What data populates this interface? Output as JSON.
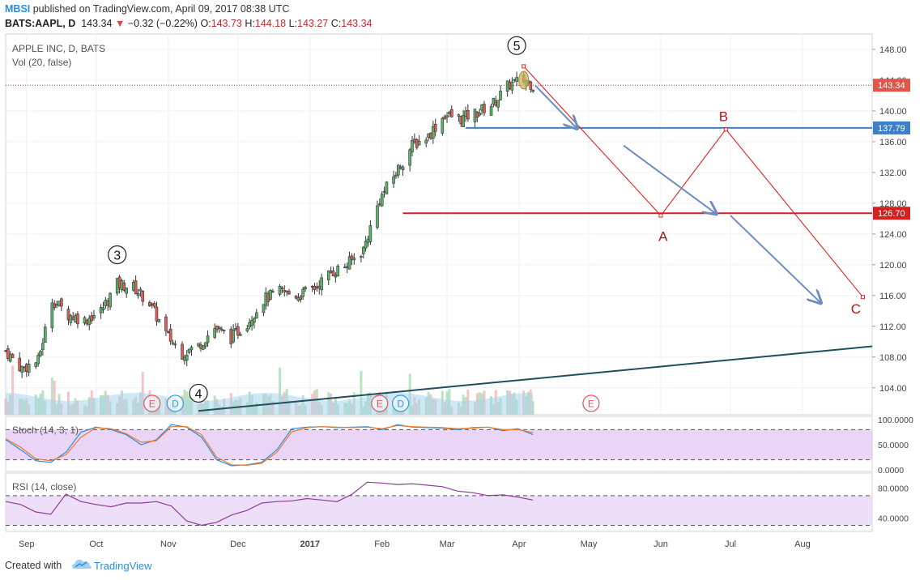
{
  "header": {
    "user": "MBSI",
    "published": "published on TradingView.com, April 09, 2017 08:38 UTC",
    "symbol": "BATS:AAPL, D",
    "last": "143.34",
    "change": "−0.32 (−0.22%)",
    "o_label": "O:",
    "o": "143.73",
    "h_label": "H:",
    "h": "144.18",
    "l_label": "L:",
    "l": "143.27",
    "c_label": "C:",
    "c": "143.34"
  },
  "footer": {
    "created": "Created with",
    "brand": "TradingView"
  },
  "chart_data": [
    {
      "type": "candlestick",
      "title": "APPLE INC, D, BATS",
      "volume_label": "Vol (20, false)",
      "ylim": [
        100.5,
        150
      ],
      "y_ticks": [
        "148.00",
        "144.00",
        "140.00",
        "136.00",
        "132.00",
        "128.00",
        "124.00",
        "120.00",
        "116.00",
        "112.00",
        "108.00",
        "104.00"
      ],
      "x_labels": [
        "Sep",
        "Oct",
        "Nov",
        "Dec",
        "2017",
        "Feb",
        "Mar",
        "Apr",
        "May",
        "Jun",
        "Jul",
        "Aug"
      ],
      "price_badges": [
        {
          "value": "143.34",
          "color": "#e0564b"
        },
        {
          "value": "137.79",
          "color": "#3f7fc8"
        },
        {
          "value": "126.70",
          "color": "#d32020"
        }
      ],
      "levels": [
        137.79,
        126.7
      ],
      "close_path": [
        [
          "2016-08-23",
          108.8
        ],
        [
          "2016-08-30",
          106.5
        ],
        [
          "2016-09-06",
          107.5
        ],
        [
          "2016-09-12",
          115.5
        ],
        [
          "2016-09-19",
          113.5
        ],
        [
          "2016-09-26",
          112.8
        ],
        [
          "2016-10-03",
          114.0
        ],
        [
          "2016-10-10",
          117.5
        ],
        [
          "2016-10-17",
          117.1
        ],
        [
          "2016-10-24",
          115.0
        ],
        [
          "2016-10-31",
          111.0
        ],
        [
          "2016-11-07",
          108.5
        ],
        [
          "2016-11-14",
          109.5
        ],
        [
          "2016-11-21",
          111.8
        ],
        [
          "2016-11-28",
          110.5
        ],
        [
          "2016-12-05",
          112.5
        ],
        [
          "2016-12-12",
          115.5
        ],
        [
          "2016-12-19",
          116.5
        ],
        [
          "2016-12-27",
          116.0
        ],
        [
          "2017-01-03",
          117.0
        ],
        [
          "2017-01-10",
          119.0
        ],
        [
          "2017-01-17",
          120.0
        ],
        [
          "2017-01-24",
          122.0
        ],
        [
          "2017-01-31",
          128.5
        ],
        [
          "2017-02-07",
          132.0
        ],
        [
          "2017-02-14",
          135.5
        ],
        [
          "2017-02-21",
          136.8
        ],
        [
          "2017-02-28",
          139.5
        ],
        [
          "2017-03-07",
          139.0
        ],
        [
          "2017-03-14",
          139.8
        ],
        [
          "2017-03-21",
          141.0
        ],
        [
          "2017-03-28",
          143.5
        ],
        [
          "2017-04-04",
          144.0
        ],
        [
          "2017-04-07",
          143.34
        ]
      ],
      "wave_labels": [
        {
          "text": "3",
          "date": "2016-10-10",
          "price": 121.3
        },
        {
          "text": "4",
          "date": "2016-11-14",
          "price": 103.3
        },
        {
          "text": "5",
          "date": "2017-03-31",
          "price": 148.5
        }
      ],
      "abc_path": [
        [
          "2017-04-03",
          145.8
        ],
        [
          "2017-06-01",
          126.4
        ],
        [
          "2017-06-29",
          137.6
        ],
        [
          "2017-08-27",
          115.8
        ]
      ],
      "abc_labels": [
        {
          "text": "A",
          "date": "2017-06-02",
          "price": 123.7
        },
        {
          "text": "B",
          "date": "2017-06-28",
          "price": 139.3
        },
        {
          "text": "C",
          "date": "2017-08-24",
          "price": 114.3
        }
      ],
      "trendline": [
        [
          "2016-11-14",
          101.0
        ],
        [
          "2017-08-31",
          109.4
        ]
      ],
      "arrows": [
        [
          [
            "2017-04-08",
            143.3
          ],
          [
            "2017-04-26",
            137.7
          ]
        ],
        [
          [
            "2017-05-16",
            135.5
          ],
          [
            "2017-06-25",
            126.6
          ]
        ],
        [
          [
            "2017-07-01",
            126.4
          ],
          [
            "2017-08-09",
            115.0
          ]
        ]
      ],
      "event_markers": [
        {
          "text": "E",
          "date": "2016-10-25",
          "color": "#e0565b"
        },
        {
          "text": "D",
          "date": "2016-11-04",
          "color": "#2d9ee0"
        },
        {
          "text": "E",
          "date": "2017-01-31",
          "color": "#e0565b"
        },
        {
          "text": "D",
          "date": "2017-02-09",
          "color": "#2d9ee0"
        },
        {
          "text": "E",
          "date": "2017-05-02",
          "color": "#e0565b"
        }
      ]
    },
    {
      "type": "line",
      "title": "Stoch (14, 3, 1)",
      "ylim": [
        0,
        100
      ],
      "y_ticks": [
        "100.0000",
        "50.0000",
        "0.0000"
      ],
      "bands": [
        20,
        80
      ],
      "series": [
        {
          "values": [
            60,
            40,
            18,
            15,
            35,
            75,
            85,
            80,
            70,
            50,
            60,
            90,
            85,
            65,
            20,
            8,
            10,
            15,
            40,
            82,
            85,
            86,
            84,
            85,
            86,
            80,
            90,
            85,
            84,
            83,
            80,
            84,
            85,
            78,
            82,
            70
          ]
        },
        {
          "values": [
            62,
            45,
            22,
            18,
            30,
            65,
            84,
            82,
            72,
            55,
            58,
            86,
            86,
            70,
            25,
            10,
            9,
            13,
            35,
            76,
            84,
            86,
            85,
            84,
            85,
            82,
            88,
            86,
            85,
            84,
            82,
            83,
            85,
            80,
            80,
            74
          ]
        }
      ]
    },
    {
      "type": "line",
      "title": "RSI (14, close)",
      "ylim": [
        24,
        96
      ],
      "y_ticks": [
        "80.0000",
        "40.0000"
      ],
      "bands": [
        30,
        70
      ],
      "series": [
        {
          "values": [
            62,
            58,
            48,
            45,
            72,
            62,
            58,
            55,
            60,
            60,
            62,
            56,
            36,
            30,
            34,
            44,
            50,
            60,
            62,
            63,
            66,
            64,
            62,
            72,
            88,
            87,
            85,
            86,
            84,
            82,
            76,
            74,
            70,
            71,
            68,
            64
          ]
        }
      ]
    }
  ]
}
